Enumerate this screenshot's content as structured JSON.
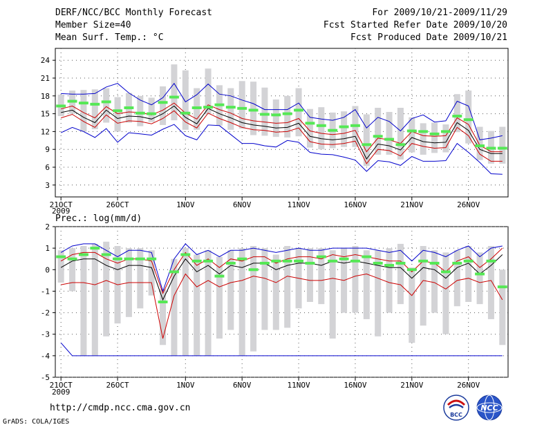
{
  "header": {
    "title": "DERF/NCC/BCC Monthly Forecast",
    "member_size": "Member Size=40",
    "variable": "Mean Surf. Temp.: °C",
    "period": "For 2009/10/21-2009/11/29",
    "started": "Fcst Started Refer Date 2009/10/20",
    "produced": "Fcst Produced Date 2009/10/21"
  },
  "footer": {
    "url": "http://cmdp.ncc.cma.gov.cn",
    "grads": "GrADS: COLA/IGES",
    "logo_left": "BCC",
    "logo_right": "NCC"
  },
  "colors": {
    "mean": "#000000",
    "std": "#cc0000",
    "extreme": "#0000cc",
    "box": "#d3d3d6",
    "median": "#55e855"
  },
  "chart_data": [
    {
      "type": "box-ensemble",
      "title": "Mean Surf. Temp.: °C",
      "ylabel": "°C",
      "ylim": [
        1,
        26
      ],
      "yticks": [
        3,
        6,
        9,
        12,
        15,
        18,
        21,
        24
      ],
      "xticks": [
        {
          "day": 0,
          "label": "21OCT",
          "sub": "2009"
        },
        {
          "day": 5,
          "label": "26OCT",
          "sub": ""
        },
        {
          "day": 11,
          "label": "1NOV",
          "sub": ""
        },
        {
          "day": 16,
          "label": "6NOV",
          "sub": ""
        },
        {
          "day": 21,
          "label": "11NOV",
          "sub": ""
        },
        {
          "day": 26,
          "label": "16NOV",
          "sub": ""
        },
        {
          "day": 31,
          "label": "21NOV",
          "sub": ""
        },
        {
          "day": 36,
          "label": "26NOV",
          "sub": ""
        }
      ],
      "days": 40,
      "mean": [
        15.2,
        15.6,
        14.4,
        13.5,
        15.6,
        14.2,
        14.6,
        14.5,
        14.1,
        15.0,
        16.3,
        14.4,
        13.3,
        15.9,
        15.0,
        14.3,
        13.5,
        13.1,
        12.9,
        12.6,
        12.7,
        13.4,
        11.2,
        10.8,
        10.6,
        10.8,
        11.2,
        7.4,
        9.9,
        9.6,
        8.9,
        11.0,
        10.3,
        10.1,
        10.2,
        13.5,
        12.2,
        9.0,
        8.3,
        8.3
      ],
      "std_upper": [
        15.8,
        16.3,
        15.2,
        14.3,
        16.2,
        15.0,
        15.3,
        15.2,
        14.8,
        15.6,
        16.8,
        15.1,
        14.1,
        16.5,
        15.7,
        15.1,
        14.2,
        13.8,
        13.6,
        13.4,
        13.5,
        14.2,
        12.1,
        11.7,
        11.5,
        11.7,
        12.2,
        8.6,
        10.9,
        10.6,
        10.0,
        12.0,
        11.3,
        11.2,
        11.3,
        14.3,
        13.2,
        9.7,
        8.6,
        8.6
      ],
      "std_lower": [
        14.3,
        14.9,
        13.7,
        12.7,
        14.8,
        13.4,
        13.8,
        13.7,
        13.3,
        14.2,
        15.5,
        13.6,
        12.6,
        15.1,
        14.2,
        13.5,
        12.7,
        12.3,
        12.2,
        11.9,
        12.0,
        12.6,
        10.3,
        9.9,
        9.8,
        10.0,
        10.4,
        6.6,
        9.0,
        8.8,
        7.9,
        10.0,
        9.5,
        9.2,
        9.3,
        12.7,
        11.3,
        8.2,
        7.0,
        7.0
      ],
      "max": [
        18.4,
        18.3,
        18.3,
        18.4,
        19.5,
        20.1,
        18.5,
        17.3,
        16.5,
        17.7,
        20.1,
        17.0,
        18.2,
        20.0,
        18.3,
        18.0,
        17.3,
        16.7,
        15.7,
        15.7,
        15.7,
        16.8,
        14.4,
        14.1,
        13.9,
        14.4,
        15.7,
        12.6,
        14.4,
        13.7,
        12.1,
        14.2,
        14.8,
        13.6,
        13.8,
        17.1,
        16.3,
        10.6,
        10.9,
        11.3
      ],
      "min": [
        11.8,
        12.7,
        12.0,
        11.0,
        12.5,
        10.2,
        11.8,
        11.6,
        11.4,
        12.4,
        13.2,
        11.3,
        10.6,
        13.1,
        13.0,
        11.5,
        10.0,
        10.0,
        9.6,
        9.4,
        10.5,
        10.2,
        8.5,
        8.2,
        8.1,
        7.7,
        7.2,
        5.3,
        7.1,
        6.9,
        6.3,
        7.8,
        7.0,
        7.0,
        7.1,
        10.0,
        8.5,
        6.8,
        4.9,
        4.8
      ],
      "box_top": [
        18.2,
        18.9,
        19.0,
        19.1,
        19.3,
        17.8,
        18.5,
        18.0,
        17.7,
        19.6,
        23.3,
        22.3,
        19.3,
        22.6,
        19.8,
        19.3,
        20.5,
        20.4,
        19.4,
        17.4,
        18.0,
        19.3,
        15.8,
        16.1,
        15.2,
        15.4,
        16.3,
        14.9,
        16.0,
        15.3,
        16.0,
        14.4,
        13.4,
        13.5,
        13.2,
        18.3,
        18.9,
        12.8,
        12.1,
        12.8
      ],
      "box_bottom": [
        14.6,
        15.0,
        12.0,
        12.4,
        13.5,
        12.0,
        13.5,
        12.9,
        13.6,
        13.1,
        13.9,
        12.3,
        12.3,
        14.9,
        13.0,
        12.3,
        12.5,
        11.4,
        11.3,
        11.1,
        11.0,
        11.2,
        9.3,
        9.0,
        9.2,
        9.4,
        9.4,
        6.2,
        8.1,
        8.1,
        7.3,
        8.5,
        8.1,
        8.4,
        8.5,
        11.9,
        10.0,
        7.2,
        6.6,
        6.6
      ],
      "median": [
        16.3,
        17.1,
        16.8,
        16.6,
        17.0,
        15.5,
        16.0,
        15.1,
        15.0,
        16.9,
        17.8,
        15.1,
        16.0,
        16.1,
        16.5,
        16.1,
        15.9,
        15.6,
        14.9,
        14.8,
        15.0,
        15.6,
        13.4,
        13.0,
        12.2,
        12.8,
        13.0,
        9.8,
        11.2,
        10.7,
        9.8,
        12.1,
        12.0,
        11.6,
        12.0,
        14.6,
        14.0,
        9.6,
        9.2,
        9.2
      ]
    },
    {
      "type": "box-ensemble",
      "title": "Prec.: log(mm/d)",
      "ylabel": "log(mm/d)",
      "ylim": [
        -5,
        2
      ],
      "yticks": [
        -5,
        -4,
        -3,
        -2,
        -1,
        0,
        1,
        2
      ],
      "xticks": [
        {
          "day": 0,
          "label": "21OCT",
          "sub": "2009"
        },
        {
          "day": 5,
          "label": "26OCT",
          "sub": ""
        },
        {
          "day": 11,
          "label": "1NOV",
          "sub": ""
        },
        {
          "day": 16,
          "label": "6NOV",
          "sub": ""
        },
        {
          "day": 21,
          "label": "11NOV",
          "sub": ""
        },
        {
          "day": 26,
          "label": "16NOV",
          "sub": ""
        },
        {
          "day": 31,
          "label": "21NOV",
          "sub": ""
        },
        {
          "day": 36,
          "label": "26NOV",
          "sub": ""
        }
      ],
      "days": 40,
      "mean": [
        0.1,
        0.4,
        0.5,
        0.5,
        0.2,
        0.0,
        0.2,
        0.2,
        0.1,
        -1.4,
        -0.3,
        0.5,
        -0.1,
        0.2,
        -0.2,
        0.2,
        0.1,
        0.3,
        0.3,
        0.0,
        0.2,
        0.3,
        0.3,
        0.2,
        0.4,
        0.3,
        0.4,
        0.3,
        0.2,
        0.1,
        0.1,
        -0.4,
        0.1,
        0.0,
        -0.4,
        0.1,
        0.3,
        -0.2,
        0.2,
        0.7
      ],
      "std_upper": [
        0.4,
        0.7,
        0.8,
        0.8,
        0.5,
        0.3,
        0.5,
        0.5,
        0.4,
        -1.1,
        0.0,
        0.8,
        0.2,
        0.5,
        0.1,
        0.5,
        0.4,
        0.6,
        0.6,
        0.3,
        0.5,
        0.6,
        0.6,
        0.5,
        0.7,
        0.6,
        0.7,
        0.6,
        0.5,
        0.4,
        0.4,
        -0.1,
        0.4,
        0.3,
        -0.1,
        0.4,
        0.6,
        0.1,
        0.5,
        1.0
      ],
      "std_lower": [
        -0.7,
        -0.6,
        -0.6,
        -0.7,
        -0.5,
        -0.7,
        -0.6,
        -0.6,
        -0.6,
        -3.2,
        -1.2,
        -0.2,
        -0.8,
        -0.5,
        -0.8,
        -0.6,
        -0.5,
        -0.3,
        -0.4,
        -0.6,
        -0.3,
        -0.4,
        -0.5,
        -0.5,
        -0.4,
        -0.5,
        -0.3,
        -0.2,
        -0.4,
        -0.6,
        -0.7,
        -1.2,
        -0.5,
        -0.6,
        -0.9,
        -0.5,
        -0.4,
        -0.6,
        -0.5,
        -1.4
      ],
      "max": [
        0.8,
        1.1,
        1.2,
        1.2,
        0.9,
        0.6,
        0.9,
        0.9,
        0.8,
        -1.0,
        0.5,
        1.2,
        0.7,
        0.9,
        0.6,
        0.9,
        0.9,
        1.0,
        0.9,
        0.8,
        0.9,
        1.0,
        0.9,
        0.9,
        1.0,
        1.0,
        1.0,
        1.0,
        0.9,
        0.8,
        0.9,
        0.4,
        0.9,
        0.8,
        0.6,
        0.9,
        1.1,
        0.6,
        1.0,
        1.1
      ],
      "min": [
        -3.4,
        -4.0,
        -4.0,
        -4.0,
        -4.0,
        -4.0,
        -4.0,
        -4.0,
        -4.0,
        -4.0,
        -4.0,
        -4.0,
        -4.0,
        -4.0,
        -4.0,
        -4.0,
        -4.0,
        -4.0,
        -4.0,
        -4.0,
        -4.0,
        -4.0,
        -4.0,
        -4.0,
        -4.0,
        -4.0,
        -4.0,
        -4.0,
        -4.0,
        -4.0,
        -4.0,
        -4.0,
        -4.0,
        -4.0,
        -4.0,
        -4.0,
        -4.0,
        -4.0,
        -4.0,
        -4.0
      ],
      "box_top": [
        0.9,
        1.0,
        1.1,
        1.2,
        1.3,
        1.1,
        1.0,
        1.0,
        0.9,
        -0.9,
        0.5,
        1.0,
        0.7,
        0.9,
        0.6,
        0.9,
        1.0,
        1.1,
        1.0,
        0.7,
        1.1,
        1.0,
        1.0,
        1.0,
        0.9,
        1.0,
        1.1,
        0.9,
        0.9,
        1.0,
        1.2,
        0.1,
        1.1,
        0.9,
        0.8,
        0.9,
        1.1,
        0.8,
        1.1,
        0.0
      ],
      "box_bottom": [
        -0.6,
        -1.0,
        -4.0,
        -4.0,
        -3.1,
        -2.5,
        -2.2,
        -1.8,
        -1.2,
        -3.5,
        -4.0,
        -4.0,
        -4.0,
        -4.0,
        -3.2,
        -2.8,
        -4.0,
        -3.8,
        -2.8,
        -2.8,
        -2.7,
        -1.8,
        -1.5,
        -1.6,
        -3.2,
        -2.0,
        -2.0,
        -2.3,
        -3.1,
        -2.0,
        -1.6,
        -3.4,
        -2.6,
        -2.0,
        -3.0,
        -1.7,
        -1.5,
        -1.6,
        -2.3,
        -3.5
      ],
      "median": [
        0.6,
        0.5,
        0.7,
        1.0,
        0.7,
        0.5,
        0.5,
        0.5,
        0.5,
        -1.5,
        -0.1,
        0.7,
        0.4,
        0.4,
        -0.3,
        0.3,
        0.5,
        0.0,
        0.3,
        0.4,
        0.4,
        0.4,
        0.3,
        0.6,
        0.4,
        0.5,
        0.4,
        0.6,
        0.3,
        0.2,
        0.3,
        0.0,
        0.4,
        0.3,
        -0.1,
        0.3,
        0.4,
        -0.2,
        0.4,
        -0.8
      ]
    }
  ]
}
